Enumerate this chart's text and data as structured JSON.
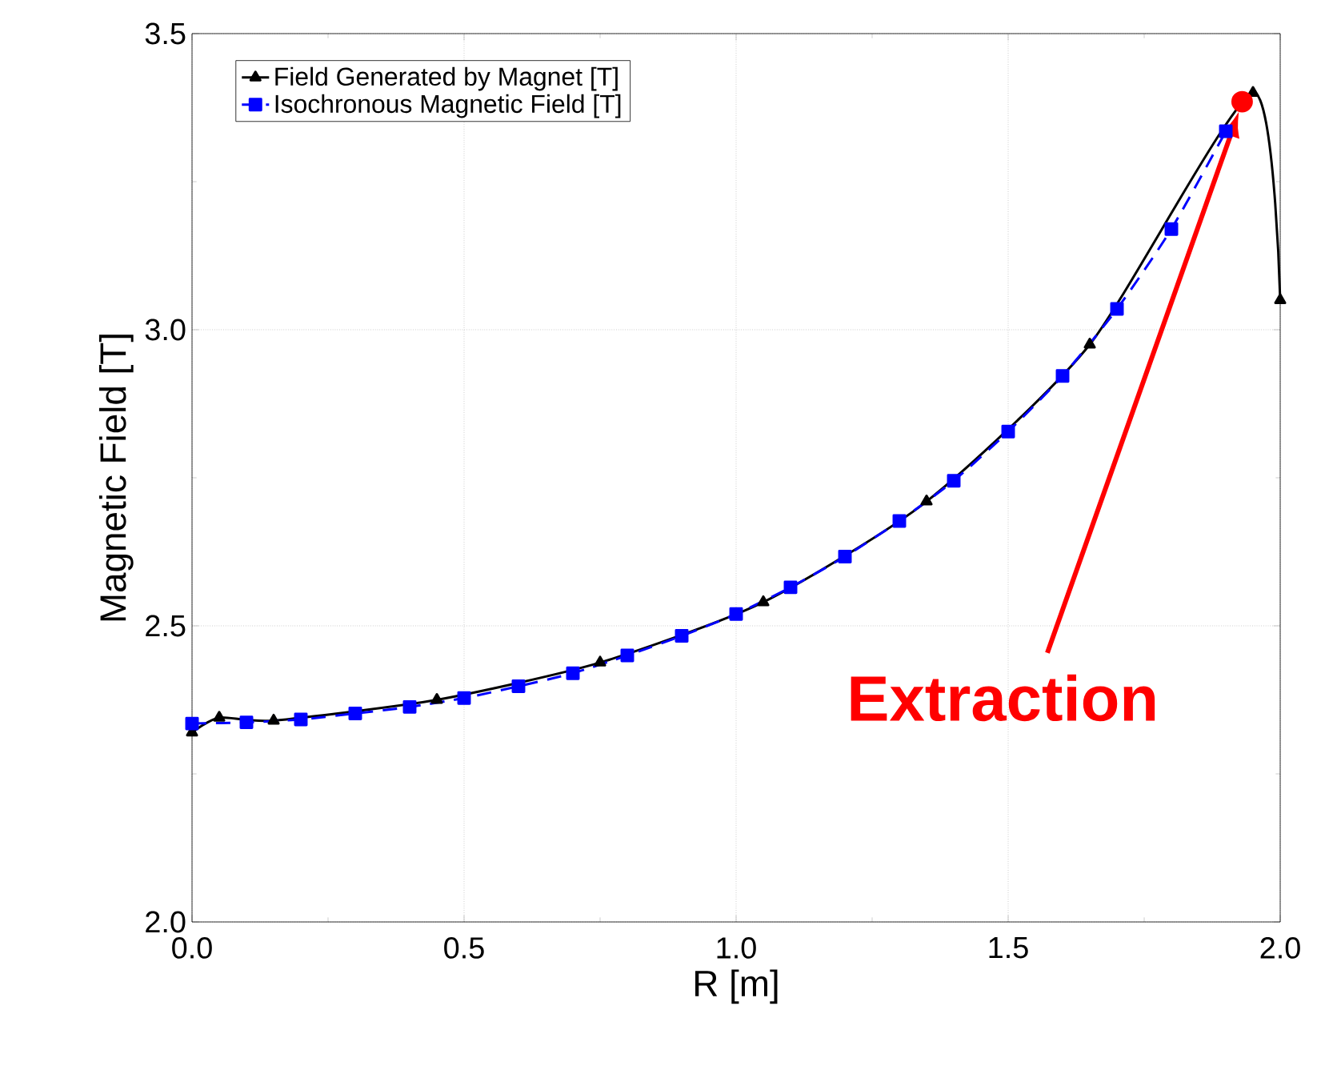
{
  "chart_data": {
    "type": "line",
    "xlabel": "R [m]",
    "ylabel": "Magnetic Field [T]",
    "xlim": [
      0,
      2
    ],
    "ylim": [
      2,
      3.5
    ],
    "xticks": [
      {
        "value": 0,
        "label": "0.0"
      },
      0.5,
      {
        "value": 1,
        "label": "1.0"
      },
      1.5,
      {
        "value": 2,
        "label": "2.0"
      }
    ],
    "yticks": [
      {
        "value": 2,
        "label": "2.0"
      },
      2.5,
      {
        "value": 3,
        "label": "3.0"
      },
      3.5
    ],
    "grid": true,
    "legend": "top left",
    "series": [
      {
        "name": "Field Generated by Magnet [T]",
        "color": "#000000",
        "marker": "triangle",
        "line_style": "solid",
        "x": [
          0,
          0.05,
          0.15,
          0.45,
          0.75,
          1.05,
          1.35,
          1.65,
          1.95,
          2.0
        ],
        "values": [
          2.32,
          2.345,
          2.34,
          2.375,
          2.438,
          2.54,
          2.71,
          2.975,
          3.4,
          3.05
        ]
      },
      {
        "name": "Isochronous Magnetic Field [T]",
        "color": "#0000ff",
        "marker": "square",
        "line_style": "dashed",
        "x": [
          0,
          0.1,
          0.2,
          0.3,
          0.4,
          0.5,
          0.6,
          0.7,
          0.8,
          0.9,
          1.0,
          1.1,
          1.2,
          1.3,
          1.4,
          1.5,
          1.6,
          1.7,
          1.8,
          1.9
        ],
        "values": [
          2.335,
          2.337,
          2.342,
          2.352,
          2.363,
          2.378,
          2.398,
          2.42,
          2.45,
          2.483,
          2.52,
          2.565,
          2.617,
          2.677,
          2.745,
          2.828,
          2.922,
          3.035,
          3.17,
          3.335
        ]
      },
      {
        "type": "scatter",
        "color": "#ff0000",
        "marker": "circle",
        "x": [
          1.93
        ],
        "values": [
          3.385
        ]
      }
    ],
    "annotations": [
      "Extraction"
    ]
  }
}
